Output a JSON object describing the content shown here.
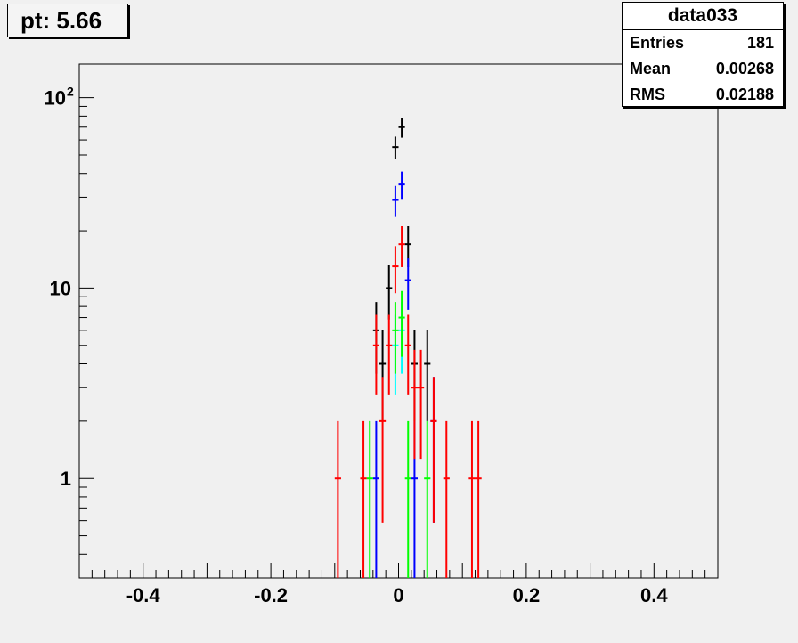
{
  "title": "pt: 5.66",
  "stats": {
    "name": "data033",
    "rows": [
      {
        "label": "Entries",
        "value": "181"
      },
      {
        "label": "Mean",
        "value": "0.00268"
      },
      {
        "label": "RMS",
        "value": "0.02188"
      }
    ]
  },
  "chart_data": {
    "type": "scatter",
    "xlim": [
      -0.5,
      0.5
    ],
    "ylim": [
      0.3,
      150
    ],
    "yscale": "log",
    "grid": false,
    "x_ticks": [
      {
        "v": -0.4,
        "label": "-0.4"
      },
      {
        "v": -0.2,
        "label": "-0.2"
      },
      {
        "v": 0,
        "label": "0"
      },
      {
        "v": 0.2,
        "label": "0.2"
      },
      {
        "v": 0.4,
        "label": "0.4"
      }
    ],
    "y_ticks": [
      {
        "v": 1,
        "label": "1"
      },
      {
        "v": 10,
        "label": "10"
      },
      {
        "v": 100,
        "label": "10",
        "sup": "2"
      }
    ],
    "series": [
      {
        "color": "#000000",
        "points": [
          {
            "x": -0.035,
            "y": 6
          },
          {
            "x": -0.025,
            "y": 4
          },
          {
            "x": -0.015,
            "y": 10
          },
          {
            "x": -0.005,
            "y": 55
          },
          {
            "x": 0.005,
            "y": 70
          },
          {
            "x": 0.015,
            "y": 17
          },
          {
            "x": 0.025,
            "y": 4
          },
          {
            "x": 0.045,
            "y": 4
          }
        ]
      },
      {
        "color": "#0000ff",
        "points": [
          {
            "x": -0.035,
            "y": 1
          },
          {
            "x": -0.005,
            "y": 29
          },
          {
            "x": 0.005,
            "y": 35
          },
          {
            "x": 0.015,
            "y": 11
          },
          {
            "x": 0.025,
            "y": 1
          },
          {
            "x": 0.055,
            "y": 2
          }
        ]
      },
      {
        "color": "#00ffff",
        "points": [
          {
            "x": -0.005,
            "y": 5
          },
          {
            "x": 0.005,
            "y": 6
          }
        ]
      },
      {
        "color": "#00ff00",
        "points": [
          {
            "x": -0.045,
            "y": 1
          },
          {
            "x": -0.005,
            "y": 6
          },
          {
            "x": 0.005,
            "y": 7
          },
          {
            "x": 0.015,
            "y": 1
          },
          {
            "x": 0.045,
            "y": 1
          }
        ]
      },
      {
        "color": "#ff0000",
        "points": [
          {
            "x": -0.095,
            "y": 1
          },
          {
            "x": -0.055,
            "y": 1
          },
          {
            "x": -0.035,
            "y": 5
          },
          {
            "x": -0.025,
            "y": 2
          },
          {
            "x": -0.015,
            "y": 5
          },
          {
            "x": -0.005,
            "y": 13
          },
          {
            "x": 0.005,
            "y": 17
          },
          {
            "x": 0.015,
            "y": 5
          },
          {
            "x": 0.025,
            "y": 3
          },
          {
            "x": 0.035,
            "y": 3
          },
          {
            "x": 0.055,
            "y": 2
          },
          {
            "x": 0.075,
            "y": 1
          },
          {
            "x": 0.115,
            "y": 1
          },
          {
            "x": 0.125,
            "y": 1
          }
        ]
      }
    ]
  }
}
